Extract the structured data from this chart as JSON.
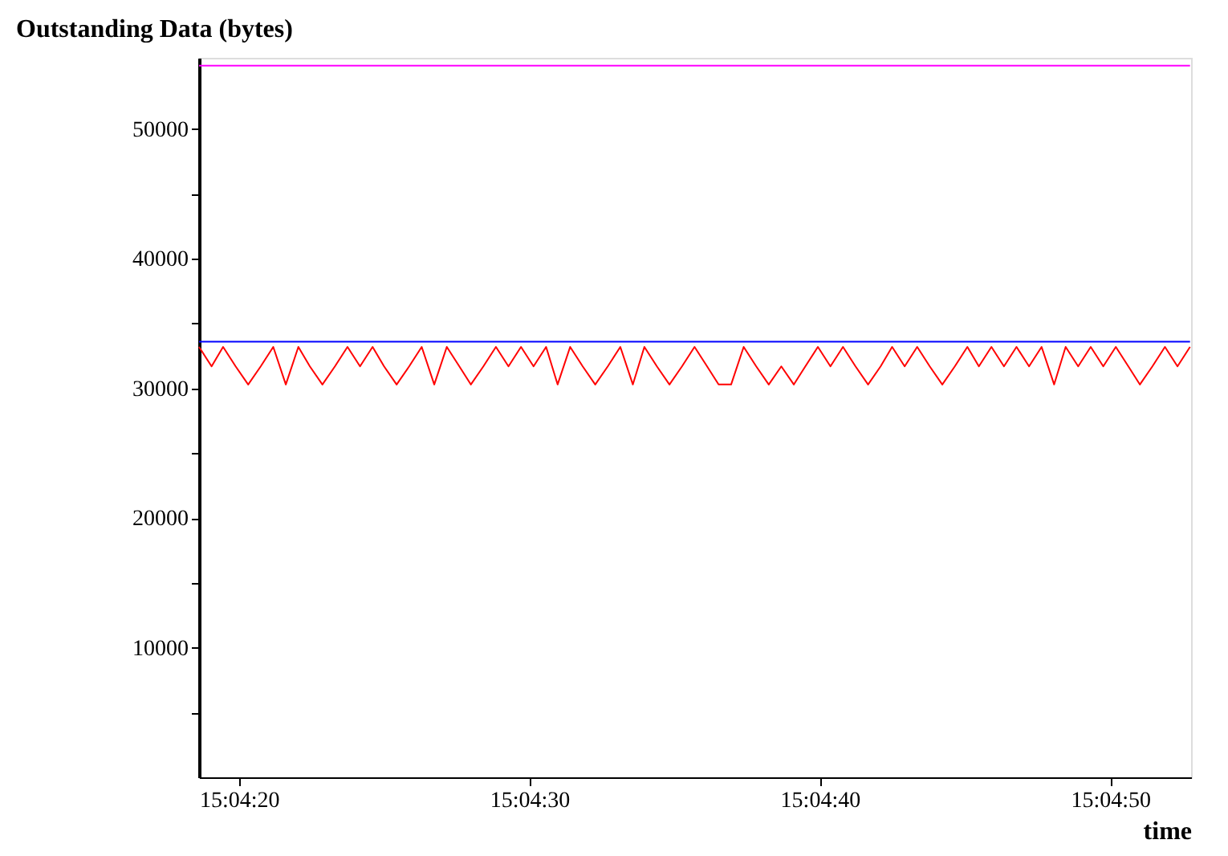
{
  "chart_data": {
    "type": "line",
    "title": "Outstanding Data (bytes)",
    "xlabel": "time",
    "xlim": [
      15.07184,
      15.08133
    ],
    "ylim": [
      0,
      55500
    ],
    "xticks": [
      {
        "value": 15.072222,
        "label": "15:04:20"
      },
      {
        "value": 15.075,
        "label": "15:04:30"
      },
      {
        "value": 15.077778,
        "label": "15:04:40"
      },
      {
        "value": 15.080556,
        "label": "15:04:50"
      }
    ],
    "yticks": [
      {
        "value": 5000,
        "label": null
      },
      10000,
      {
        "value": 15000,
        "label": null
      },
      20000,
      {
        "value": 25000,
        "label": null
      },
      30000,
      {
        "value": 35000,
        "label": null
      },
      40000,
      {
        "value": 45000,
        "label": null
      },
      50000
    ],
    "grid": false,
    "legend": false,
    "marker": "none",
    "line_style": "solid",
    "series": [
      {
        "color": "#ff00ff",
        "x": [
          15.07184,
          15.08132
        ],
        "values": [
          54900,
          54900
        ]
      },
      {
        "color": "#0000ff",
        "x": [
          15.07184,
          15.08132
        ],
        "values": [
          33600,
          33600
        ]
      },
      {
        "color": "#ff0000",
        "x": [
          15.07184,
          15.07196,
          15.07207,
          15.07219,
          15.07231,
          15.07243,
          15.07255,
          15.07267,
          15.07279,
          15.0729,
          15.07302,
          15.07314,
          15.07326,
          15.07338,
          15.0735,
          15.07361,
          15.07373,
          15.07385,
          15.07397,
          15.07409,
          15.07421,
          15.07433,
          15.07444,
          15.07456,
          15.07468,
          15.0748,
          15.07492,
          15.07504,
          15.07516,
          15.07527,
          15.07539,
          15.07551,
          15.07563,
          15.07575,
          15.07587,
          15.07599,
          15.0761,
          15.07622,
          15.07634,
          15.07646,
          15.07658,
          15.0767,
          15.07681,
          15.07693,
          15.07705,
          15.07717,
          15.07729,
          15.07741,
          15.07753,
          15.07764,
          15.07776,
          15.07788,
          15.078,
          15.07812,
          15.07824,
          15.07836,
          15.07847,
          15.07859,
          15.07871,
          15.07883,
          15.07895,
          15.07907,
          15.07919,
          15.0793,
          15.07942,
          15.07954,
          15.07966,
          15.07978,
          15.0799,
          15.08002,
          15.08013,
          15.08025,
          15.08037,
          15.08049,
          15.08061,
          15.08073,
          15.08084,
          15.08096,
          15.08108,
          15.0812,
          15.08132
        ],
        "values": [
          33200,
          31700,
          33200,
          31700,
          30300,
          31700,
          33200,
          30300,
          33200,
          31700,
          30300,
          31700,
          33200,
          31700,
          33200,
          31700,
          30300,
          31700,
          33200,
          30300,
          33200,
          31700,
          30300,
          31700,
          33200,
          31700,
          33200,
          31700,
          33200,
          30300,
          33200,
          31700,
          30300,
          31700,
          33200,
          30300,
          33200,
          31700,
          30300,
          31700,
          33200,
          31700,
          30300,
          30300,
          33200,
          31700,
          30300,
          31700,
          30300,
          31700,
          33200,
          31700,
          33200,
          31700,
          30300,
          31700,
          33200,
          31700,
          33200,
          31700,
          30300,
          31700,
          33200,
          31700,
          33200,
          31700,
          33200,
          31700,
          33200,
          30300,
          33200,
          31700,
          33200,
          31700,
          33200,
          31700,
          30300,
          31700,
          33200,
          31700,
          33200
        ]
      }
    ]
  }
}
